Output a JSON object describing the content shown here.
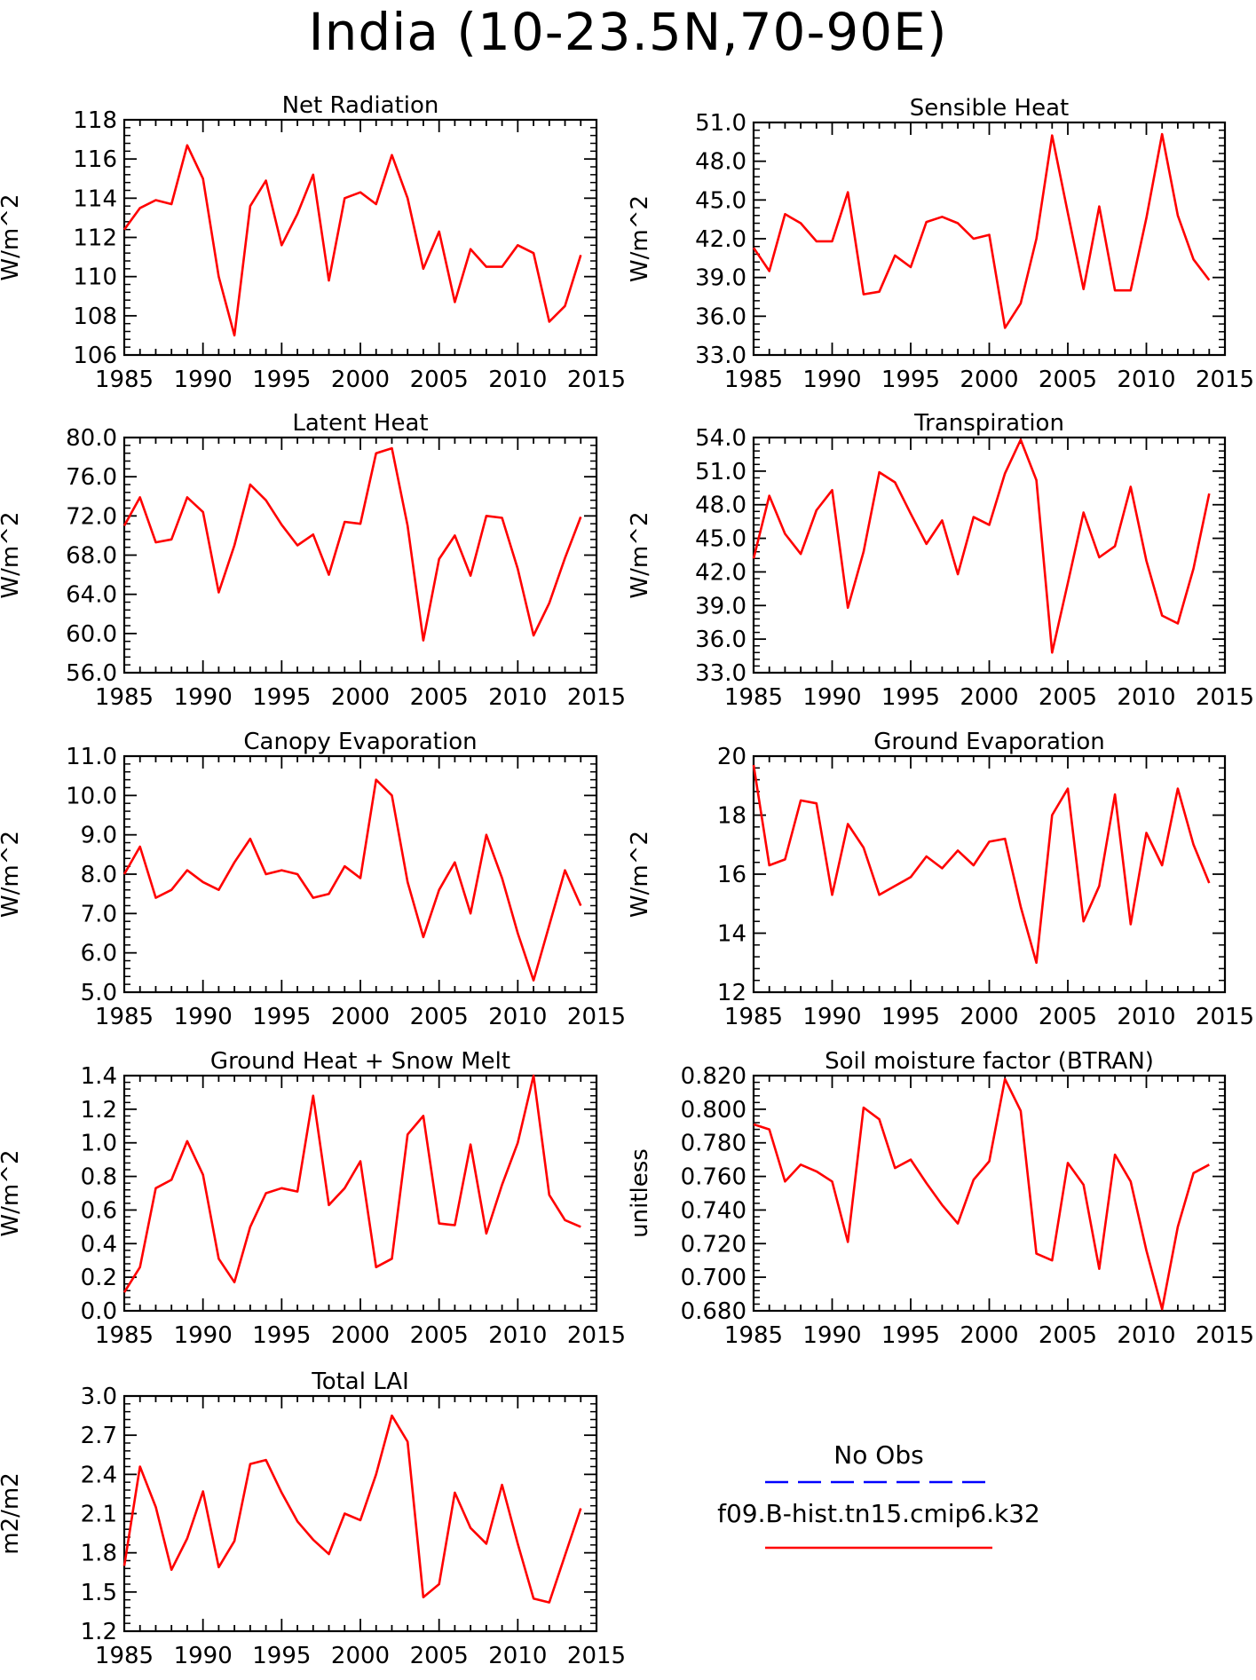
{
  "title": "India (10-23.5N,70-90E)",
  "colors": {
    "model": "#ff0000",
    "obs": "#0000ff",
    "axis": "#000000"
  },
  "legend": {
    "obs_label": "No Obs",
    "model_label": "f09.B-hist.tn15.cmip6.k32"
  },
  "chart_data": [
    {
      "type": "line",
      "title": "Net Radiation",
      "ylabel": "W/m^2",
      "xlim": [
        1985,
        2015
      ],
      "ylim": [
        106,
        118
      ],
      "xticks": [
        "1985",
        "1990",
        "1995",
        "2000",
        "2005",
        "2010",
        "2015"
      ],
      "yticks": [
        "106",
        "108",
        "110",
        "112",
        "114",
        "116",
        "118"
      ],
      "x": [
        1985,
        1986,
        1987,
        1988,
        1989,
        1990,
        1991,
        1992,
        1993,
        1994,
        1995,
        1996,
        1997,
        1998,
        1999,
        2000,
        2001,
        2002,
        2003,
        2004,
        2005,
        2006,
        2007,
        2008,
        2009,
        2010,
        2011,
        2012,
        2013,
        2014
      ],
      "series": [
        {
          "values": [
            112.4,
            113.5,
            113.9,
            113.7,
            116.7,
            115.0,
            110.0,
            107.0,
            113.6,
            114.9,
            111.6,
            113.2,
            115.2,
            109.8,
            114.0,
            114.3,
            113.7,
            116.2,
            114.0,
            110.4,
            112.3,
            108.7,
            111.4,
            110.5,
            110.5,
            111.6,
            111.2,
            107.7,
            108.5,
            111.1
          ]
        }
      ]
    },
    {
      "type": "line",
      "title": "Sensible Heat",
      "ylabel": "W/m^2",
      "xlim": [
        1985,
        2015
      ],
      "ylim": [
        33,
        51
      ],
      "xticks": [
        "1985",
        "1990",
        "1995",
        "2000",
        "2005",
        "2010",
        "2015"
      ],
      "yticks": [
        "33.0",
        "36.0",
        "39.0",
        "42.0",
        "45.0",
        "48.0",
        "51.0"
      ],
      "x": [
        1985,
        1986,
        1987,
        1988,
        1989,
        1990,
        1991,
        1992,
        1993,
        1994,
        1995,
        1996,
        1997,
        1998,
        1999,
        2000,
        2001,
        2002,
        2003,
        2004,
        2005,
        2006,
        2007,
        2008,
        2009,
        2010,
        2011,
        2012,
        2013,
        2014
      ],
      "series": [
        {
          "values": [
            41.3,
            39.5,
            43.9,
            43.2,
            41.8,
            41.8,
            45.6,
            37.7,
            37.9,
            40.7,
            39.8,
            43.3,
            43.7,
            43.2,
            42.0,
            42.3,
            35.1,
            37.0,
            42.0,
            50.0,
            44.0,
            38.1,
            44.5,
            38.0,
            38.0,
            43.6,
            50.1,
            43.8,
            40.4,
            38.8
          ]
        }
      ]
    },
    {
      "type": "line",
      "title": "Latent Heat",
      "ylabel": "W/m^2",
      "xlim": [
        1985,
        2015
      ],
      "ylim": [
        56,
        80
      ],
      "xticks": [
        "1985",
        "1990",
        "1995",
        "2000",
        "2005",
        "2010",
        "2015"
      ],
      "yticks": [
        "56.0",
        "60.0",
        "64.0",
        "68.0",
        "72.0",
        "76.0",
        "80.0"
      ],
      "x": [
        1985,
        1986,
        1987,
        1988,
        1989,
        1990,
        1991,
        1992,
        1993,
        1994,
        1995,
        1996,
        1997,
        1998,
        1999,
        2000,
        2001,
        2002,
        2003,
        2004,
        2005,
        2006,
        2007,
        2008,
        2009,
        2010,
        2011,
        2012,
        2013,
        2014
      ],
      "series": [
        {
          "values": [
            71.0,
            73.9,
            69.3,
            69.6,
            73.9,
            72.4,
            64.2,
            69.0,
            75.2,
            73.6,
            71.1,
            69.0,
            70.1,
            66.0,
            71.4,
            71.2,
            78.4,
            78.9,
            71.0,
            59.3,
            67.6,
            70.0,
            65.9,
            72.0,
            71.8,
            66.6,
            59.8,
            63.1,
            67.7,
            71.9
          ]
        }
      ]
    },
    {
      "type": "line",
      "title": "Transpiration",
      "ylabel": "W/m^2",
      "xlim": [
        1985,
        2015
      ],
      "ylim": [
        33,
        54
      ],
      "xticks": [
        "1985",
        "1990",
        "1995",
        "2000",
        "2005",
        "2010",
        "2015"
      ],
      "yticks": [
        "33.0",
        "36.0",
        "39.0",
        "42.0",
        "45.0",
        "48.0",
        "51.0",
        "54.0"
      ],
      "x": [
        1985,
        1986,
        1987,
        1988,
        1989,
        1990,
        1991,
        1992,
        1993,
        1994,
        1995,
        1996,
        1997,
        1998,
        1999,
        2000,
        2001,
        2002,
        2003,
        2004,
        2005,
        2006,
        2007,
        2008,
        2009,
        2010,
        2011,
        2012,
        2013,
        2014
      ],
      "series": [
        {
          "values": [
            43.2,
            48.8,
            45.4,
            43.6,
            47.5,
            49.3,
            38.8,
            43.8,
            50.9,
            50.0,
            47.2,
            44.5,
            46.6,
            41.8,
            46.9,
            46.2,
            50.8,
            53.8,
            50.2,
            34.8,
            41.0,
            47.3,
            43.3,
            44.3,
            49.6,
            43.0,
            38.1,
            37.4,
            42.3,
            49.0
          ]
        }
      ]
    },
    {
      "type": "line",
      "title": "Canopy Evaporation",
      "ylabel": "W/m^2",
      "xlim": [
        1985,
        2015
      ],
      "ylim": [
        5,
        11
      ],
      "xticks": [
        "1985",
        "1990",
        "1995",
        "2000",
        "2005",
        "2010",
        "2015"
      ],
      "yticks": [
        "5.0",
        "6.0",
        "7.0",
        "8.0",
        "9.0",
        "10.0",
        "11.0"
      ],
      "x": [
        1985,
        1986,
        1987,
        1988,
        1989,
        1990,
        1991,
        1992,
        1993,
        1994,
        1995,
        1996,
        1997,
        1998,
        1999,
        2000,
        2001,
        2002,
        2003,
        2004,
        2005,
        2006,
        2007,
        2008,
        2009,
        2010,
        2011,
        2012,
        2013,
        2014
      ],
      "series": [
        {
          "values": [
            8.0,
            8.7,
            7.4,
            7.6,
            8.1,
            7.8,
            7.6,
            8.3,
            8.9,
            8.0,
            8.1,
            8.0,
            7.4,
            7.5,
            8.2,
            7.9,
            10.4,
            10.0,
            7.8,
            6.4,
            7.6,
            8.3,
            7.0,
            9.0,
            7.9,
            6.5,
            5.3,
            6.7,
            8.1,
            7.2
          ]
        }
      ]
    },
    {
      "type": "line",
      "title": "Ground Evaporation",
      "ylabel": "W/m^2",
      "xlim": [
        1985,
        2015
      ],
      "ylim": [
        12,
        20
      ],
      "xticks": [
        "1985",
        "1990",
        "1995",
        "2000",
        "2005",
        "2010",
        "2015"
      ],
      "yticks": [
        "12",
        "14",
        "16",
        "18",
        "20"
      ],
      "x": [
        1985,
        1986,
        1987,
        1988,
        1989,
        1990,
        1991,
        1992,
        1993,
        1994,
        1995,
        1996,
        1997,
        1998,
        1999,
        2000,
        2001,
        2002,
        2003,
        2004,
        2005,
        2006,
        2007,
        2008,
        2009,
        2010,
        2011,
        2012,
        2013,
        2014
      ],
      "series": [
        {
          "values": [
            19.7,
            16.3,
            16.5,
            18.5,
            18.4,
            15.3,
            17.7,
            16.9,
            15.3,
            15.6,
            15.9,
            16.6,
            16.2,
            16.8,
            16.3,
            17.1,
            17.2,
            14.9,
            13.0,
            18.0,
            18.9,
            14.4,
            15.6,
            18.7,
            14.3,
            17.4,
            16.3,
            18.9,
            17.0,
            15.7
          ]
        }
      ]
    },
    {
      "type": "line",
      "title": "Ground Heat + Snow Melt",
      "ylabel": "W/m^2",
      "xlim": [
        1985,
        2015
      ],
      "ylim": [
        0,
        1.4
      ],
      "xticks": [
        "1985",
        "1990",
        "1995",
        "2000",
        "2005",
        "2010",
        "2015"
      ],
      "yticks": [
        "0.0",
        "0.2",
        "0.4",
        "0.6",
        "0.8",
        "1.0",
        "1.2",
        "1.4"
      ],
      "x": [
        1985,
        1986,
        1987,
        1988,
        1989,
        1990,
        1991,
        1992,
        1993,
        1994,
        1995,
        1996,
        1997,
        1998,
        1999,
        2000,
        2001,
        2002,
        2003,
        2004,
        2005,
        2006,
        2007,
        2008,
        2009,
        2010,
        2011,
        2012,
        2013,
        2014
      ],
      "series": [
        {
          "values": [
            0.11,
            0.26,
            0.73,
            0.78,
            1.01,
            0.81,
            0.31,
            0.17,
            0.5,
            0.7,
            0.73,
            0.71,
            1.28,
            0.63,
            0.73,
            0.89,
            0.26,
            0.31,
            1.05,
            1.16,
            0.52,
            0.51,
            0.99,
            0.46,
            0.75,
            1.0,
            1.4,
            0.69,
            0.54,
            0.5
          ]
        }
      ]
    },
    {
      "type": "line",
      "title": "Soil moisture factor (BTRAN)",
      "ylabel": "unitless",
      "xlim": [
        1985,
        2015
      ],
      "ylim": [
        0.68,
        0.82
      ],
      "xticks": [
        "1985",
        "1990",
        "1995",
        "2000",
        "2005",
        "2010",
        "2015"
      ],
      "yticks": [
        "0.680",
        "0.700",
        "0.720",
        "0.740",
        "0.760",
        "0.780",
        "0.800",
        "0.820"
      ],
      "x": [
        1985,
        1986,
        1987,
        1988,
        1989,
        1990,
        1991,
        1992,
        1993,
        1994,
        1995,
        1996,
        1997,
        1998,
        1999,
        2000,
        2001,
        2002,
        2003,
        2004,
        2005,
        2006,
        2007,
        2008,
        2009,
        2010,
        2011,
        2012,
        2013,
        2014
      ],
      "series": [
        {
          "values": [
            0.791,
            0.788,
            0.757,
            0.767,
            0.763,
            0.757,
            0.721,
            0.801,
            0.794,
            0.765,
            0.77,
            0.756,
            0.743,
            0.732,
            0.758,
            0.769,
            0.818,
            0.799,
            0.714,
            0.71,
            0.768,
            0.755,
            0.705,
            0.773,
            0.757,
            0.716,
            0.681,
            0.73,
            0.762,
            0.767
          ]
        }
      ]
    },
    {
      "type": "line",
      "title": "Total LAI",
      "ylabel": "m2/m2",
      "xlim": [
        1985,
        2015
      ],
      "ylim": [
        1.2,
        3.0
      ],
      "xticks": [
        "1985",
        "1990",
        "1995",
        "2000",
        "2005",
        "2010",
        "2015"
      ],
      "yticks": [
        "1.2",
        "1.5",
        "1.8",
        "2.1",
        "2.4",
        "2.7",
        "3.0"
      ],
      "x": [
        1985,
        1986,
        1987,
        1988,
        1989,
        1990,
        1991,
        1992,
        1993,
        1994,
        1995,
        1996,
        1997,
        1998,
        1999,
        2000,
        2001,
        2002,
        2003,
        2004,
        2005,
        2006,
        2007,
        2008,
        2009,
        2010,
        2011,
        2012,
        2013,
        2014
      ],
      "series": [
        {
          "values": [
            1.7,
            2.46,
            2.15,
            1.67,
            1.91,
            2.27,
            1.69,
            1.89,
            2.48,
            2.51,
            2.26,
            2.04,
            1.9,
            1.79,
            2.1,
            2.05,
            2.4,
            2.85,
            2.65,
            1.46,
            1.56,
            2.26,
            1.99,
            1.87,
            2.32,
            1.87,
            1.45,
            1.42,
            1.78,
            2.14
          ]
        }
      ]
    }
  ]
}
